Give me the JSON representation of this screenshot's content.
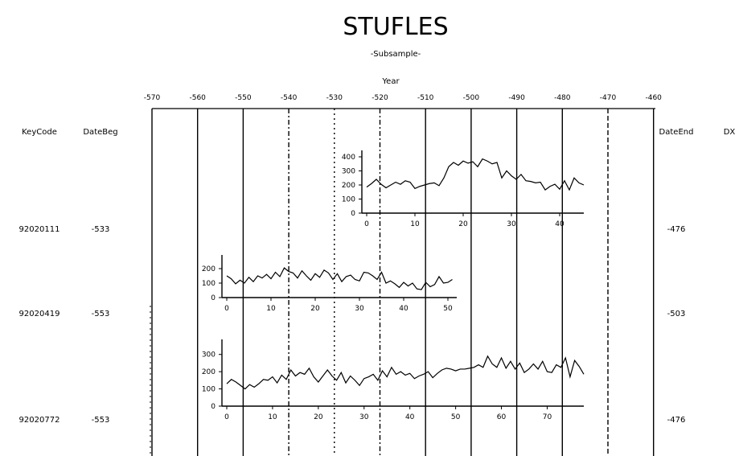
{
  "chart_data": {
    "type": "line",
    "title": "STUFLES",
    "subtitle": "-Subsample-",
    "top_axis": {
      "label": "Year",
      "ticks": [
        "-570",
        "-560",
        "-550",
        "-540",
        "-530",
        "-520",
        "-510",
        "-500",
        "-490",
        "-480",
        "-470",
        "-460"
      ]
    },
    "columns": {
      "left_1": "KeyCode",
      "left_2": "DateBeg",
      "right_1": "DateEnd",
      "right_2": "DX"
    },
    "rows": [
      {
        "key": "92020111",
        "date_begin": "-533",
        "date_end": "-476",
        "xlim": [
          0,
          45
        ],
        "ylim": [
          0,
          400
        ],
        "x_ticks": [
          "0",
          "10",
          "20",
          "30",
          "40"
        ],
        "y_ticks": [
          "400",
          "300",
          "200",
          "100",
          "0"
        ],
        "ylabel": "",
        "values": [
          185,
          210,
          240,
          205,
          180,
          200,
          220,
          205,
          230,
          220,
          175,
          190,
          200,
          210,
          215,
          195,
          250,
          330,
          360,
          340,
          370,
          355,
          365,
          330,
          385,
          370,
          350,
          360,
          250,
          300,
          265,
          240,
          275,
          230,
          225,
          215,
          220,
          165,
          190,
          205,
          170,
          230,
          165,
          250,
          215,
          200
        ]
      },
      {
        "key": "92020419",
        "date_begin": "-553",
        "date_end": "-503",
        "xlim": [
          0,
          52
        ],
        "ylim": [
          0,
          250
        ],
        "x_ticks": [
          "0",
          "10",
          "20",
          "30",
          "40",
          "50"
        ],
        "y_ticks": [
          "200",
          "100",
          "0"
        ],
        "values": [
          150,
          130,
          95,
          120,
          100,
          140,
          110,
          150,
          135,
          160,
          130,
          175,
          145,
          205,
          180,
          170,
          135,
          185,
          150,
          120,
          165,
          140,
          190,
          170,
          125,
          165,
          110,
          145,
          155,
          125,
          115,
          175,
          170,
          150,
          125,
          175,
          100,
          115,
          95,
          70,
          105,
          80,
          100,
          60,
          55,
          105,
          75,
          90,
          145,
          100,
          105,
          125
        ]
      },
      {
        "key": "92020772",
        "date_begin": "-553",
        "date_end": "-476",
        "xlim": [
          0,
          78
        ],
        "ylim": [
          0,
          350
        ],
        "x_ticks": [
          "0",
          "10",
          "20",
          "30",
          "40",
          "50",
          "60",
          "70"
        ],
        "y_ticks": [
          "300",
          "200",
          "100",
          "0"
        ],
        "values": [
          130,
          155,
          140,
          120,
          100,
          125,
          110,
          130,
          155,
          150,
          170,
          135,
          180,
          155,
          210,
          175,
          195,
          185,
          220,
          170,
          140,
          175,
          210,
          175,
          150,
          195,
          135,
          175,
          150,
          120,
          160,
          170,
          185,
          150,
          205,
          170,
          225,
          185,
          200,
          180,
          190,
          160,
          175,
          185,
          200,
          165,
          190,
          210,
          220,
          215,
          205,
          215,
          215,
          220,
          225,
          240,
          225,
          290,
          245,
          225,
          280,
          220,
          260,
          215,
          250,
          195,
          215,
          245,
          215,
          260,
          200,
          195,
          240,
          225,
          280,
          170,
          265,
          230,
          185
        ]
      }
    ]
  }
}
